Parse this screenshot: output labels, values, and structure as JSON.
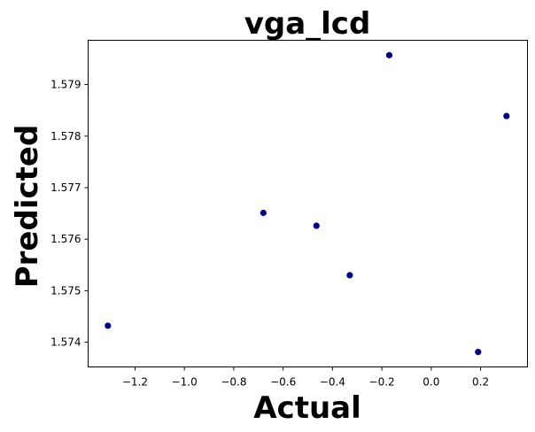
{
  "chart_data": {
    "type": "scatter",
    "title": "vga_lcd",
    "xlabel": "Actual",
    "ylabel": "Predicted",
    "xlim": [
      -1.39,
      0.39
    ],
    "ylim": [
      1.57352,
      1.57986
    ],
    "xticks": [
      -1.2,
      -1.0,
      -0.8,
      -0.6,
      -0.4,
      -0.2,
      0.0,
      0.2
    ],
    "xtick_labels": [
      "−1.2",
      "−1.0",
      "−0.8",
      "−0.6",
      "−0.4",
      "−0.2",
      "0.0",
      "0.2"
    ],
    "yticks": [
      1.574,
      1.575,
      1.576,
      1.577,
      1.578,
      1.579
    ],
    "ytick_labels": [
      "1.574",
      "1.575",
      "1.576",
      "1.577",
      "1.578",
      "1.579"
    ],
    "grid": false,
    "marker_color": "#000080",
    "points": [
      {
        "x": -1.31,
        "y": 1.57432
      },
      {
        "x": -0.68,
        "y": 1.57651
      },
      {
        "x": -0.465,
        "y": 1.57626
      },
      {
        "x": -0.33,
        "y": 1.5753
      },
      {
        "x": -0.17,
        "y": 1.57957
      },
      {
        "x": 0.19,
        "y": 1.57381
      },
      {
        "x": 0.305,
        "y": 1.57839
      }
    ]
  }
}
